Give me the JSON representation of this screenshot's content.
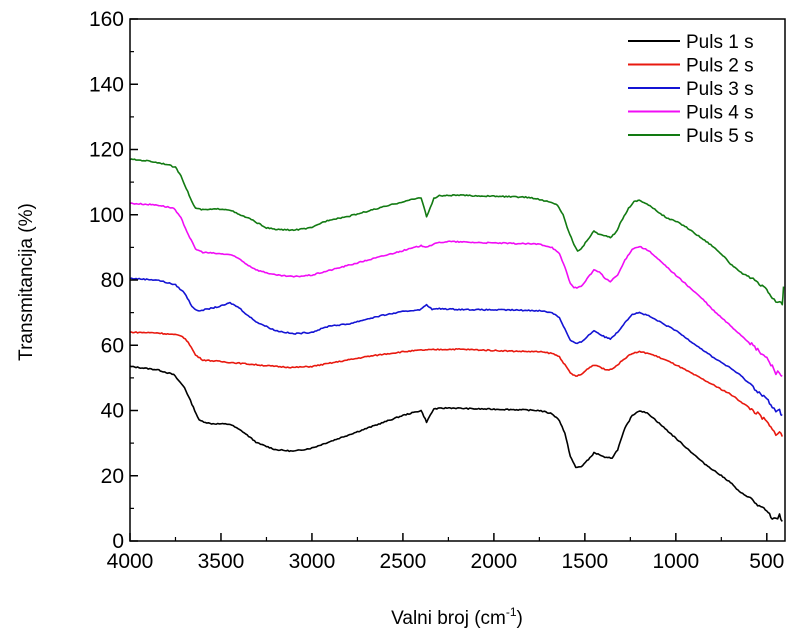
{
  "chart_data": {
    "type": "line",
    "title": "",
    "xlabel": "Valni broj (cm",
    "xlabel_sup": "-1",
    "xlabel_suffix": ")",
    "ylabel": "Transmitancija (%)",
    "xlim": [
      4000,
      400
    ],
    "ylim": [
      0,
      160
    ],
    "x_reversed": true,
    "x_ticks": [
      4000,
      3500,
      3000,
      2500,
      2000,
      1500,
      1000,
      500
    ],
    "y_ticks": [
      0,
      20,
      40,
      60,
      80,
      100,
      120,
      140,
      160
    ],
    "grid": false,
    "legend_position": "top-right",
    "series": [
      {
        "name": "Puls 1 s",
        "color": "#000000",
        "points": [
          [
            4000,
            53.5
          ],
          [
            3850,
            52.5
          ],
          [
            3760,
            51
          ],
          [
            3700,
            47
          ],
          [
            3660,
            42
          ],
          [
            3620,
            37
          ],
          [
            3560,
            36
          ],
          [
            3450,
            35.8
          ],
          [
            3380,
            33.5
          ],
          [
            3300,
            30
          ],
          [
            3200,
            28
          ],
          [
            3100,
            27.5
          ],
          [
            3000,
            28.5
          ],
          [
            2900,
            30.5
          ],
          [
            2800,
            32.5
          ],
          [
            2700,
            34.5
          ],
          [
            2600,
            36.5
          ],
          [
            2500,
            38.5
          ],
          [
            2400,
            40
          ],
          [
            2370,
            36.5
          ],
          [
            2350,
            38.5
          ],
          [
            2330,
            40.5
          ],
          [
            2250,
            40.8
          ],
          [
            2100,
            40.5
          ],
          [
            1900,
            40.3
          ],
          [
            1750,
            40
          ],
          [
            1680,
            39
          ],
          [
            1640,
            37
          ],
          [
            1610,
            33
          ],
          [
            1580,
            26
          ],
          [
            1550,
            22.5
          ],
          [
            1520,
            22.8
          ],
          [
            1480,
            25
          ],
          [
            1450,
            27
          ],
          [
            1420,
            26.5
          ],
          [
            1390,
            25.5
          ],
          [
            1350,
            25.5
          ],
          [
            1320,
            28
          ],
          [
            1280,
            34.5
          ],
          [
            1240,
            38.5
          ],
          [
            1200,
            40
          ],
          [
            1150,
            39
          ],
          [
            1100,
            36.5
          ],
          [
            1050,
            34
          ],
          [
            1000,
            31.5
          ],
          [
            950,
            29
          ],
          [
            900,
            26.5
          ],
          [
            850,
            24
          ],
          [
            800,
            22
          ],
          [
            700,
            18
          ],
          [
            650,
            15
          ],
          [
            600,
            13.5
          ],
          [
            550,
            11
          ],
          [
            500,
            9
          ],
          [
            470,
            7
          ],
          [
            450,
            6.5
          ],
          [
            430,
            8
          ],
          [
            415,
            6
          ]
        ]
      },
      {
        "name": "Puls 2 s",
        "color": "#e8190f",
        "points": [
          [
            4000,
            64
          ],
          [
            3850,
            63.8
          ],
          [
            3720,
            63
          ],
          [
            3680,
            61
          ],
          [
            3640,
            57
          ],
          [
            3600,
            55.5
          ],
          [
            3500,
            55
          ],
          [
            3400,
            54.5
          ],
          [
            3300,
            54
          ],
          [
            3200,
            53.5
          ],
          [
            3100,
            53.2
          ],
          [
            3000,
            53.5
          ],
          [
            2900,
            54.5
          ],
          [
            2800,
            55.5
          ],
          [
            2700,
            56.5
          ],
          [
            2600,
            57.3
          ],
          [
            2500,
            58
          ],
          [
            2400,
            58.5
          ],
          [
            2300,
            58.7
          ],
          [
            2200,
            58.8
          ],
          [
            2100,
            58.6
          ],
          [
            2000,
            58.4
          ],
          [
            1900,
            58.2
          ],
          [
            1750,
            58
          ],
          [
            1680,
            57.5
          ],
          [
            1640,
            56.5
          ],
          [
            1610,
            54
          ],
          [
            1580,
            51.5
          ],
          [
            1550,
            50.5
          ],
          [
            1520,
            51
          ],
          [
            1480,
            53
          ],
          [
            1450,
            54
          ],
          [
            1420,
            53.5
          ],
          [
            1390,
            52.5
          ],
          [
            1360,
            52.5
          ],
          [
            1320,
            54
          ],
          [
            1280,
            56
          ],
          [
            1240,
            57.5
          ],
          [
            1200,
            58
          ],
          [
            1150,
            57.5
          ],
          [
            1100,
            56.5
          ],
          [
            1050,
            55.3
          ],
          [
            1000,
            54
          ],
          [
            950,
            52.5
          ],
          [
            900,
            51
          ],
          [
            850,
            49.5
          ],
          [
            800,
            48
          ],
          [
            700,
            45
          ],
          [
            650,
            43
          ],
          [
            600,
            41
          ],
          [
            550,
            39
          ],
          [
            500,
            36.5
          ],
          [
            470,
            34
          ],
          [
            450,
            33
          ],
          [
            430,
            33.5
          ],
          [
            415,
            32
          ]
        ]
      },
      {
        "name": "Puls 3 s",
        "color": "#1414d4",
        "points": [
          [
            4000,
            80.5
          ],
          [
            3850,
            80
          ],
          [
            3750,
            78.5
          ],
          [
            3700,
            76
          ],
          [
            3660,
            72
          ],
          [
            3630,
            70.5
          ],
          [
            3580,
            71
          ],
          [
            3500,
            72
          ],
          [
            3450,
            73
          ],
          [
            3400,
            71.5
          ],
          [
            3350,
            69
          ],
          [
            3300,
            67
          ],
          [
            3200,
            64.5
          ],
          [
            3100,
            63.5
          ],
          [
            3000,
            64
          ],
          [
            2950,
            65
          ],
          [
            2900,
            66
          ],
          [
            2850,
            66.2
          ],
          [
            2800,
            66.5
          ],
          [
            2700,
            68
          ],
          [
            2600,
            69.3
          ],
          [
            2500,
            70.3
          ],
          [
            2400,
            71
          ],
          [
            2370,
            72.5
          ],
          [
            2340,
            71
          ],
          [
            2300,
            71.2
          ],
          [
            2200,
            71
          ],
          [
            2100,
            70.9
          ],
          [
            1900,
            70.8
          ],
          [
            1750,
            70.6
          ],
          [
            1680,
            70
          ],
          [
            1640,
            68.5
          ],
          [
            1610,
            65
          ],
          [
            1580,
            61.5
          ],
          [
            1550,
            60.5
          ],
          [
            1520,
            61
          ],
          [
            1480,
            63
          ],
          [
            1450,
            64.5
          ],
          [
            1420,
            63.5
          ],
          [
            1390,
            62.5
          ],
          [
            1360,
            62
          ],
          [
            1320,
            64
          ],
          [
            1280,
            67
          ],
          [
            1240,
            69.5
          ],
          [
            1200,
            70
          ],
          [
            1150,
            69
          ],
          [
            1100,
            67.5
          ],
          [
            1050,
            66
          ],
          [
            1000,
            64.5
          ],
          [
            950,
            62.5
          ],
          [
            900,
            60.5
          ],
          [
            850,
            58.5
          ],
          [
            800,
            56.5
          ],
          [
            700,
            53
          ],
          [
            650,
            51
          ],
          [
            600,
            48.5
          ],
          [
            550,
            46
          ],
          [
            500,
            43.5
          ],
          [
            470,
            41
          ],
          [
            450,
            39.5
          ],
          [
            430,
            40
          ],
          [
            415,
            38.5
          ]
        ]
      },
      {
        "name": "Puls 4 s",
        "color": "#f00df5",
        "points": [
          [
            4000,
            103.5
          ],
          [
            3850,
            103
          ],
          [
            3760,
            102
          ],
          [
            3720,
            99
          ],
          [
            3680,
            94
          ],
          [
            3640,
            89.5
          ],
          [
            3600,
            88.5
          ],
          [
            3500,
            88
          ],
          [
            3450,
            87.8
          ],
          [
            3400,
            86.5
          ],
          [
            3350,
            84.5
          ],
          [
            3300,
            83
          ],
          [
            3200,
            81.5
          ],
          [
            3100,
            81
          ],
          [
            3000,
            81.5
          ],
          [
            2900,
            83
          ],
          [
            2800,
            84.5
          ],
          [
            2700,
            86
          ],
          [
            2600,
            87.5
          ],
          [
            2500,
            89
          ],
          [
            2400,
            90.5
          ],
          [
            2370,
            90.2
          ],
          [
            2300,
            91.5
          ],
          [
            2250,
            91.8
          ],
          [
            2100,
            91.5
          ],
          [
            1900,
            91.2
          ],
          [
            1750,
            91
          ],
          [
            1680,
            90
          ],
          [
            1640,
            88
          ],
          [
            1610,
            84
          ],
          [
            1580,
            79
          ],
          [
            1560,
            77.5
          ],
          [
            1520,
            78
          ],
          [
            1480,
            81
          ],
          [
            1450,
            83
          ],
          [
            1420,
            82.5
          ],
          [
            1390,
            80.5
          ],
          [
            1360,
            79.5
          ],
          [
            1320,
            81.5
          ],
          [
            1280,
            86
          ],
          [
            1240,
            89.5
          ],
          [
            1200,
            90.3
          ],
          [
            1150,
            89
          ],
          [
            1100,
            86.5
          ],
          [
            1050,
            84
          ],
          [
            1000,
            81.5
          ],
          [
            950,
            79
          ],
          [
            900,
            76.5
          ],
          [
            850,
            74
          ],
          [
            800,
            71
          ],
          [
            700,
            66
          ],
          [
            650,
            63.5
          ],
          [
            600,
            61
          ],
          [
            550,
            58.5
          ],
          [
            500,
            56
          ],
          [
            470,
            53.5
          ],
          [
            450,
            51.5
          ],
          [
            430,
            52
          ],
          [
            415,
            50.5
          ]
        ]
      },
      {
        "name": "Puls 5 s",
        "color": "#127a12",
        "points": [
          [
            4000,
            117
          ],
          [
            3900,
            116.5
          ],
          [
            3800,
            115.5
          ],
          [
            3750,
            114.5
          ],
          [
            3720,
            112
          ],
          [
            3690,
            108
          ],
          [
            3660,
            104
          ],
          [
            3640,
            102
          ],
          [
            3600,
            101.5
          ],
          [
            3500,
            101.8
          ],
          [
            3450,
            101.5
          ],
          [
            3400,
            100
          ],
          [
            3350,
            99
          ],
          [
            3300,
            97.5
          ],
          [
            3250,
            96
          ],
          [
            3200,
            95.5
          ],
          [
            3100,
            95.3
          ],
          [
            3000,
            96
          ],
          [
            2950,
            97.5
          ],
          [
            2900,
            98.5
          ],
          [
            2850,
            99
          ],
          [
            2800,
            99.5
          ],
          [
            2700,
            101
          ],
          [
            2600,
            102.5
          ],
          [
            2500,
            104
          ],
          [
            2400,
            105.3
          ],
          [
            2370,
            99.5
          ],
          [
            2350,
            102
          ],
          [
            2330,
            105
          ],
          [
            2300,
            105.8
          ],
          [
            2200,
            106
          ],
          [
            2100,
            105.8
          ],
          [
            1950,
            105.6
          ],
          [
            1800,
            105.3
          ],
          [
            1700,
            104
          ],
          [
            1650,
            103
          ],
          [
            1620,
            100
          ],
          [
            1590,
            95
          ],
          [
            1560,
            91
          ],
          [
            1540,
            89
          ],
          [
            1520,
            89.5
          ],
          [
            1490,
            92
          ],
          [
            1450,
            95
          ],
          [
            1420,
            94
          ],
          [
            1390,
            93.5
          ],
          [
            1360,
            93
          ],
          [
            1330,
            94.5
          ],
          [
            1300,
            98
          ],
          [
            1260,
            102
          ],
          [
            1230,
            104
          ],
          [
            1200,
            104.5
          ],
          [
            1150,
            103
          ],
          [
            1100,
            101
          ],
          [
            1050,
            99
          ],
          [
            1000,
            98
          ],
          [
            950,
            96.5
          ],
          [
            900,
            94.5
          ],
          [
            850,
            92.5
          ],
          [
            800,
            90.5
          ],
          [
            750,
            88
          ],
          [
            700,
            85
          ],
          [
            650,
            82.5
          ],
          [
            600,
            81
          ],
          [
            550,
            79
          ],
          [
            500,
            77
          ],
          [
            470,
            74.5
          ],
          [
            450,
            73
          ],
          [
            430,
            73.5
          ],
          [
            415,
            72
          ],
          [
            408,
            78
          ]
        ]
      }
    ]
  }
}
